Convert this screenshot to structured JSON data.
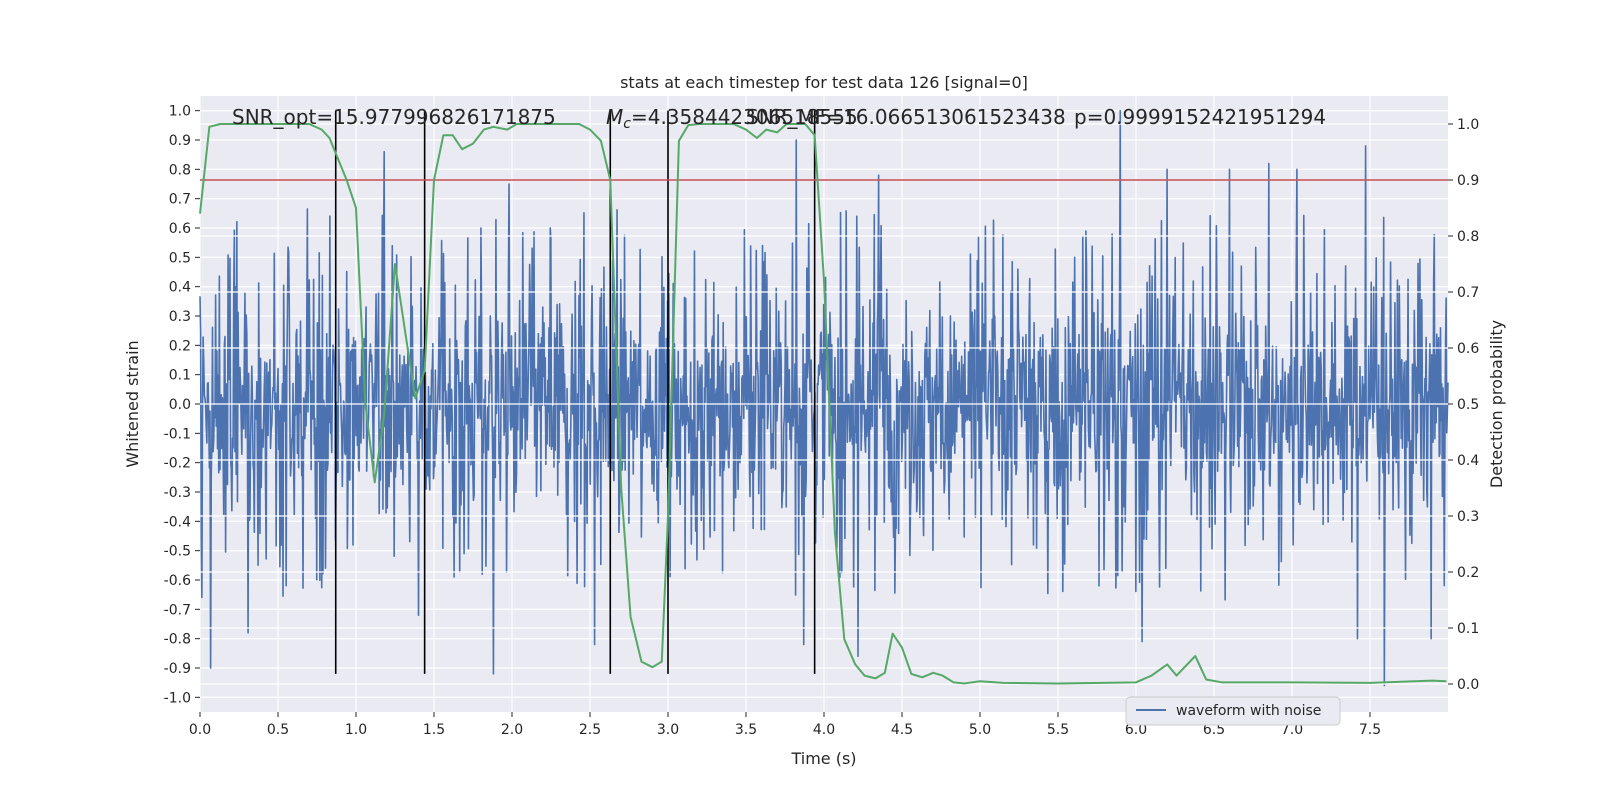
{
  "chart_data": {
    "type": "line",
    "title": "stats at each timestep for test data 126 [signal=0]",
    "xlabel": "Time (s)",
    "ylabel": "Whitened strain",
    "ylabel_right": "Detection probability",
    "xlim": [
      0.0,
      8.0
    ],
    "ylim": [
      -1.05,
      1.05
    ],
    "ylim_right": [
      -0.05,
      1.05
    ],
    "x_ticks": [
      "0.0",
      "0.5",
      "1.0",
      "1.5",
      "2.0",
      "2.5",
      "3.0",
      "3.5",
      "4.0",
      "4.5",
      "5.0",
      "5.5",
      "6.0",
      "6.5",
      "7.0",
      "7.5"
    ],
    "y_ticks": [
      "-1.0",
      "-0.9",
      "-0.8",
      "-0.7",
      "-0.6",
      "-0.5",
      "-0.4",
      "-0.3",
      "-0.2",
      "-0.1",
      "0.0",
      "0.1",
      "0.2",
      "0.3",
      "0.4",
      "0.5",
      "0.6",
      "0.7",
      "0.8",
      "0.9",
      "1.0"
    ],
    "y_ticks_right": [
      "0.0",
      "0.1",
      "0.2",
      "0.3",
      "0.4",
      "0.5",
      "0.6",
      "0.7",
      "0.8",
      "0.9",
      "1.0"
    ],
    "grid": true,
    "background": "#eaeaf2",
    "legend": {
      "position": "lower-right",
      "entries": [
        "waveform with noise"
      ]
    },
    "annotations": {
      "snr_opt": "SNR_opt=15.977996826171875",
      "mc": "=4.358442306518555",
      "mc_symbol": "M",
      "mc_subscript": "c",
      "snr_mf": "SNR_MF=16.066513061523438",
      "p": "p=0.9999152421951294"
    },
    "threshold": {
      "value": 0.9,
      "axis": "right",
      "color": "#c44e52"
    },
    "vertical_lines": [
      0.87,
      1.44,
      2.63,
      3.0,
      3.94
    ],
    "vertical_line_range": [
      -0.92,
      1.0
    ],
    "series": [
      {
        "name": "waveform with noise",
        "kind": "noise",
        "color": "#4c72b0",
        "duration": 8.0,
        "samples": 2000,
        "envelope": 0.42,
        "spikes": [
          [
            1.18,
            0.86
          ],
          [
            3.82,
            0.9
          ],
          [
            5.9,
            1.0
          ],
          [
            6.2,
            0.8
          ],
          [
            6.6,
            0.8
          ],
          [
            6.85,
            0.82
          ],
          [
            7.03,
            0.8
          ],
          [
            7.47,
            0.88
          ],
          [
            7.59,
            -0.96
          ],
          [
            1.88,
            -0.92
          ],
          [
            0.07,
            -0.9
          ],
          [
            0.31,
            -0.78
          ],
          [
            1.4,
            -0.72
          ],
          [
            2.53,
            -0.82
          ],
          [
            3.87,
            -0.82
          ],
          [
            4.22,
            -0.86
          ],
          [
            6.04,
            -0.81
          ],
          [
            7.42,
            -0.8
          ],
          [
            7.89,
            -0.8
          ],
          [
            1.98,
            0.75
          ],
          [
            4.35,
            0.78
          ]
        ]
      },
      {
        "name": "",
        "kind": "probability",
        "color": "#55a868",
        "axis": "right",
        "points": [
          [
            0.0,
            0.84
          ],
          [
            0.06,
            0.995
          ],
          [
            0.13,
            1.0
          ],
          [
            0.5,
            1.0
          ],
          [
            0.7,
            1.0
          ],
          [
            0.78,
            0.99
          ],
          [
            0.83,
            0.975
          ],
          [
            0.94,
            0.9
          ],
          [
            1.0,
            0.85
          ],
          [
            1.06,
            0.5
          ],
          [
            1.12,
            0.36
          ],
          [
            1.18,
            0.48
          ],
          [
            1.25,
            0.75
          ],
          [
            1.32,
            0.62
          ],
          [
            1.38,
            0.51
          ],
          [
            1.44,
            0.56
          ],
          [
            1.5,
            0.9
          ],
          [
            1.56,
            0.98
          ],
          [
            1.62,
            0.98
          ],
          [
            1.68,
            0.955
          ],
          [
            1.75,
            0.965
          ],
          [
            1.82,
            0.99
          ],
          [
            1.88,
            0.995
          ],
          [
            1.97,
            0.99
          ],
          [
            2.03,
            1.0
          ],
          [
            2.15,
            1.0
          ],
          [
            2.43,
            1.0
          ],
          [
            2.5,
            0.99
          ],
          [
            2.57,
            0.97
          ],
          [
            2.63,
            0.9
          ],
          [
            2.7,
            0.35
          ],
          [
            2.76,
            0.12
          ],
          [
            2.83,
            0.04
          ],
          [
            2.9,
            0.03
          ],
          [
            2.96,
            0.04
          ],
          [
            3.0,
            0.3
          ],
          [
            3.07,
            0.97
          ],
          [
            3.13,
            0.998
          ],
          [
            3.2,
            1.0
          ],
          [
            3.42,
            1.0
          ],
          [
            3.5,
            0.99
          ],
          [
            3.57,
            0.975
          ],
          [
            3.63,
            0.99
          ],
          [
            3.7,
            0.985
          ],
          [
            3.76,
            1.0
          ],
          [
            3.88,
            1.0
          ],
          [
            3.94,
            0.98
          ],
          [
            4.0,
            0.72
          ],
          [
            4.07,
            0.27
          ],
          [
            4.13,
            0.08
          ],
          [
            4.2,
            0.035
          ],
          [
            4.26,
            0.015
          ],
          [
            4.33,
            0.01
          ],
          [
            4.39,
            0.02
          ],
          [
            4.44,
            0.09
          ],
          [
            4.5,
            0.065
          ],
          [
            4.56,
            0.018
          ],
          [
            4.63,
            0.012
          ],
          [
            4.7,
            0.02
          ],
          [
            4.76,
            0.015
          ],
          [
            4.83,
            0.003
          ],
          [
            4.9,
            0.001
          ],
          [
            5.0,
            0.005
          ],
          [
            5.15,
            0.002
          ],
          [
            5.5,
            0.001
          ],
          [
            6.0,
            0.003
          ],
          [
            6.1,
            0.015
          ],
          [
            6.2,
            0.035
          ],
          [
            6.26,
            0.015
          ],
          [
            6.38,
            0.05
          ],
          [
            6.45,
            0.008
          ],
          [
            6.55,
            0.003
          ],
          [
            7.0,
            0.003
          ],
          [
            7.5,
            0.002
          ],
          [
            7.9,
            0.006
          ],
          [
            7.99,
            0.005
          ]
        ]
      }
    ]
  }
}
